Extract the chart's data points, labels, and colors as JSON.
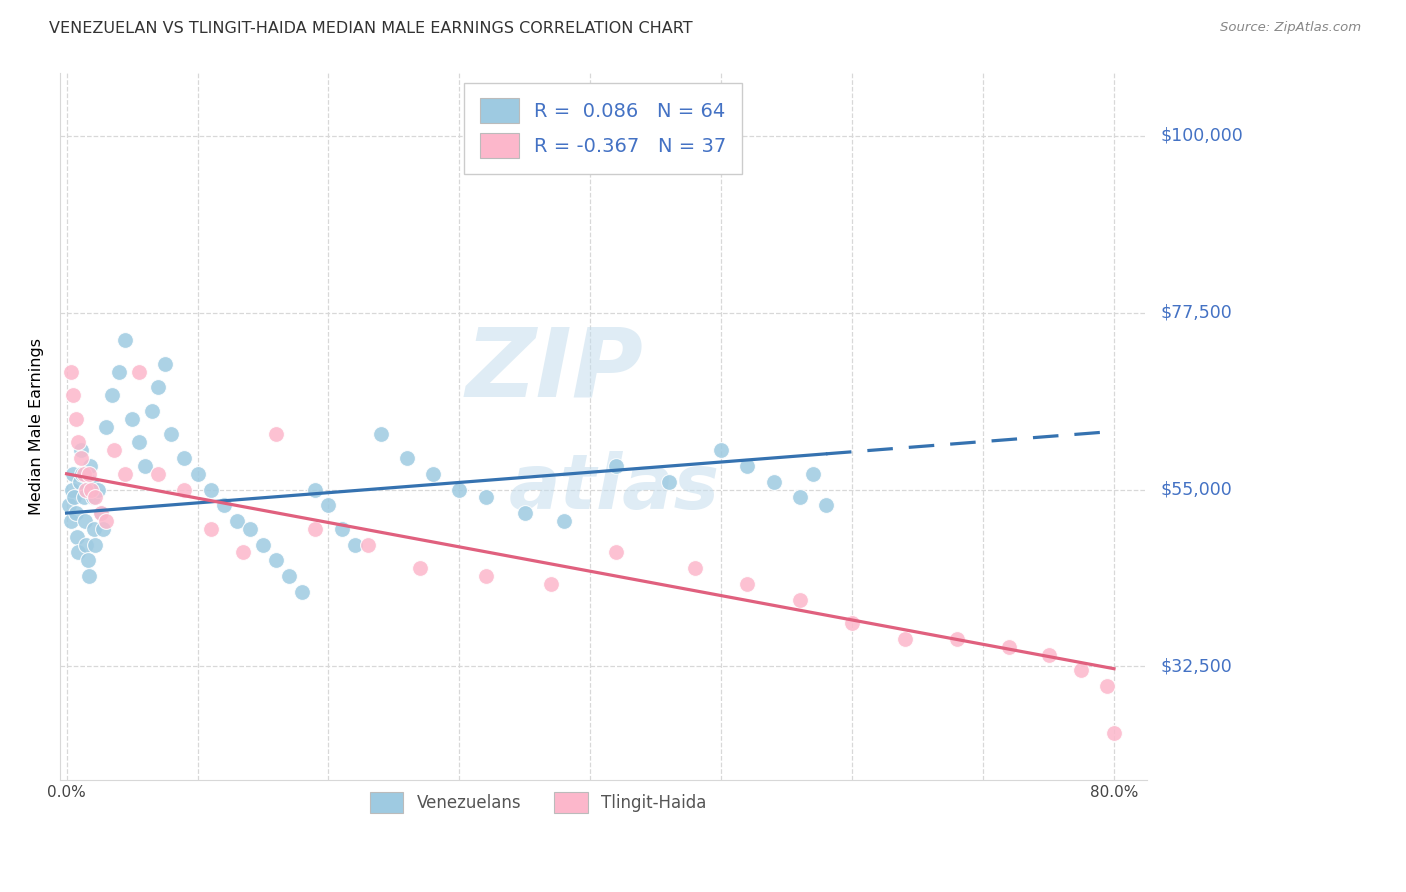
{
  "title": "VENEZUELAN VS TLINGIT-HAIDA MEDIAN MALE EARNINGS CORRELATION CHART",
  "source": "Source: ZipAtlas.com",
  "ylabel": "Median Male Earnings",
  "xlim_min": -0.005,
  "xlim_max": 0.825,
  "ylim_min": 18000,
  "ylim_max": 108000,
  "yticks": [
    32500,
    55000,
    77500,
    100000
  ],
  "ytick_labels": [
    "$32,500",
    "$55,000",
    "$77,500",
    "$100,000"
  ],
  "xtick_positions": [
    0.0,
    0.1,
    0.2,
    0.3,
    0.4,
    0.5,
    0.6,
    0.7,
    0.8
  ],
  "xtick_labels": [
    "0.0%",
    "",
    "",
    "",
    "",
    "",
    "",
    "",
    "80.0%"
  ],
  "blue_scatter_color": "#9ecae1",
  "pink_scatter_color": "#fcb7cb",
  "blue_line_color": "#3572b0",
  "pink_line_color": "#e0607e",
  "label_color": "#4472c4",
  "r_blue": 0.086,
  "n_blue": 64,
  "r_pink": -0.367,
  "n_pink": 37,
  "label_blue": "Venezuelans",
  "label_pink": "Tlingit-Haida",
  "grid_color": "#d8d8d8",
  "watermark_color": "#c5dded",
  "blue_line_intercept": 52000,
  "blue_line_slope": 13000,
  "pink_line_intercept": 57000,
  "pink_line_slope": -31000,
  "venezuelan_x": [
    0.002,
    0.003,
    0.004,
    0.005,
    0.006,
    0.007,
    0.008,
    0.009,
    0.01,
    0.011,
    0.012,
    0.013,
    0.014,
    0.015,
    0.016,
    0.017,
    0.018,
    0.019,
    0.02,
    0.021,
    0.022,
    0.024,
    0.026,
    0.028,
    0.03,
    0.035,
    0.04,
    0.045,
    0.05,
    0.055,
    0.06,
    0.065,
    0.07,
    0.075,
    0.08,
    0.09,
    0.1,
    0.11,
    0.12,
    0.13,
    0.14,
    0.15,
    0.16,
    0.17,
    0.18,
    0.19,
    0.2,
    0.21,
    0.22,
    0.24,
    0.26,
    0.28,
    0.3,
    0.32,
    0.35,
    0.38,
    0.42,
    0.46,
    0.5,
    0.52,
    0.54,
    0.56,
    0.57,
    0.58
  ],
  "venezuelan_y": [
    53000,
    51000,
    55000,
    57000,
    54000,
    52000,
    49000,
    47000,
    56000,
    60000,
    57000,
    54000,
    51000,
    48000,
    46000,
    44000,
    58000,
    56000,
    54000,
    50000,
    48000,
    55000,
    52000,
    50000,
    63000,
    67000,
    70000,
    74000,
    64000,
    61000,
    58000,
    65000,
    68000,
    71000,
    62000,
    59000,
    57000,
    55000,
    53000,
    51000,
    50000,
    48000,
    46000,
    44000,
    42000,
    55000,
    53000,
    50000,
    48000,
    62000,
    59000,
    57000,
    55000,
    54000,
    52000,
    51000,
    58000,
    56000,
    60000,
    58000,
    56000,
    54000,
    57000,
    53000
  ],
  "tlingit_x": [
    0.003,
    0.005,
    0.007,
    0.009,
    0.011,
    0.013,
    0.015,
    0.017,
    0.019,
    0.022,
    0.026,
    0.03,
    0.036,
    0.045,
    0.055,
    0.07,
    0.09,
    0.11,
    0.135,
    0.16,
    0.19,
    0.23,
    0.27,
    0.32,
    0.37,
    0.42,
    0.48,
    0.52,
    0.56,
    0.6,
    0.64,
    0.68,
    0.72,
    0.75,
    0.775,
    0.795,
    0.8
  ],
  "tlingit_y": [
    70000,
    67000,
    64000,
    61000,
    59000,
    57000,
    55000,
    57000,
    55000,
    54000,
    52000,
    51000,
    60000,
    57000,
    70000,
    57000,
    55000,
    50000,
    47000,
    62000,
    50000,
    48000,
    45000,
    44000,
    43000,
    47000,
    45000,
    43000,
    41000,
    38000,
    36000,
    36000,
    35000,
    34000,
    32000,
    30000,
    24000
  ]
}
